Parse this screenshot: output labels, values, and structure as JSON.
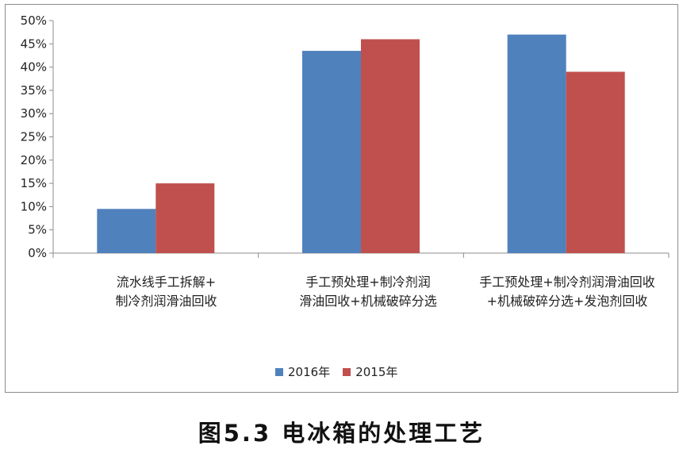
{
  "chart_data": {
    "type": "bar",
    "categories": [
      [
        "流水线手工拆解+",
        "制冷剂润滑油回收"
      ],
      [
        "手工预处理+制冷剂润",
        "滑油回收+机械破碎分选"
      ],
      [
        "手工预处理+制冷剂润滑油回收",
        "+机械破碎分选+发泡剂回收"
      ]
    ],
    "series": [
      {
        "name": "2016年",
        "values": [
          9.5,
          43.5,
          47
        ],
        "color": "#4f81bd"
      },
      {
        "name": "2015年",
        "values": [
          15,
          46,
          39
        ],
        "color": "#c0504d"
      }
    ],
    "ylim": [
      0,
      50
    ],
    "yticks": [
      "0%",
      "5%",
      "10%",
      "15%",
      "20%",
      "25%",
      "30%",
      "35%",
      "40%",
      "45%",
      "50%"
    ],
    "grid": false,
    "legend_position": "bottom"
  },
  "caption": "图5.3 电冰箱的处理工艺"
}
